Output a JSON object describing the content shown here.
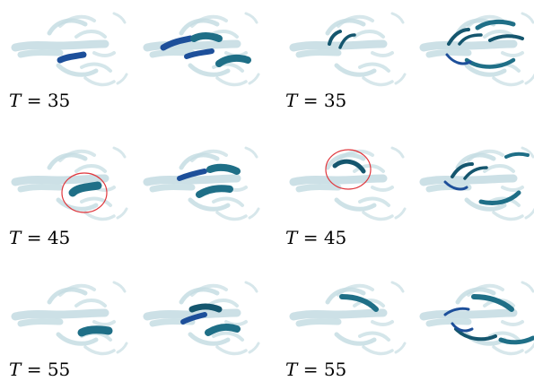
{
  "figure": {
    "rows": [
      {
        "left_label": {
          "var": "T",
          "value": "= 35"
        },
        "right_label": {
          "var": "T",
          "value": "= 35"
        }
      },
      {
        "left_label": {
          "var": "T",
          "value": "= 45"
        },
        "right_label": {
          "var": "T",
          "value": "= 45"
        }
      },
      {
        "left_label": {
          "var": "T",
          "value": "= 55"
        },
        "right_label": {
          "var": "T",
          "value": "= 55"
        }
      }
    ],
    "colors": {
      "faded": "#c6dde3",
      "faded_edge": "#a9c6cf",
      "highlight": "#1f6f87",
      "highlight_dark": "#15566e",
      "highlight_blue": "#1d4f9a",
      "circle": "#e0383e"
    }
  }
}
